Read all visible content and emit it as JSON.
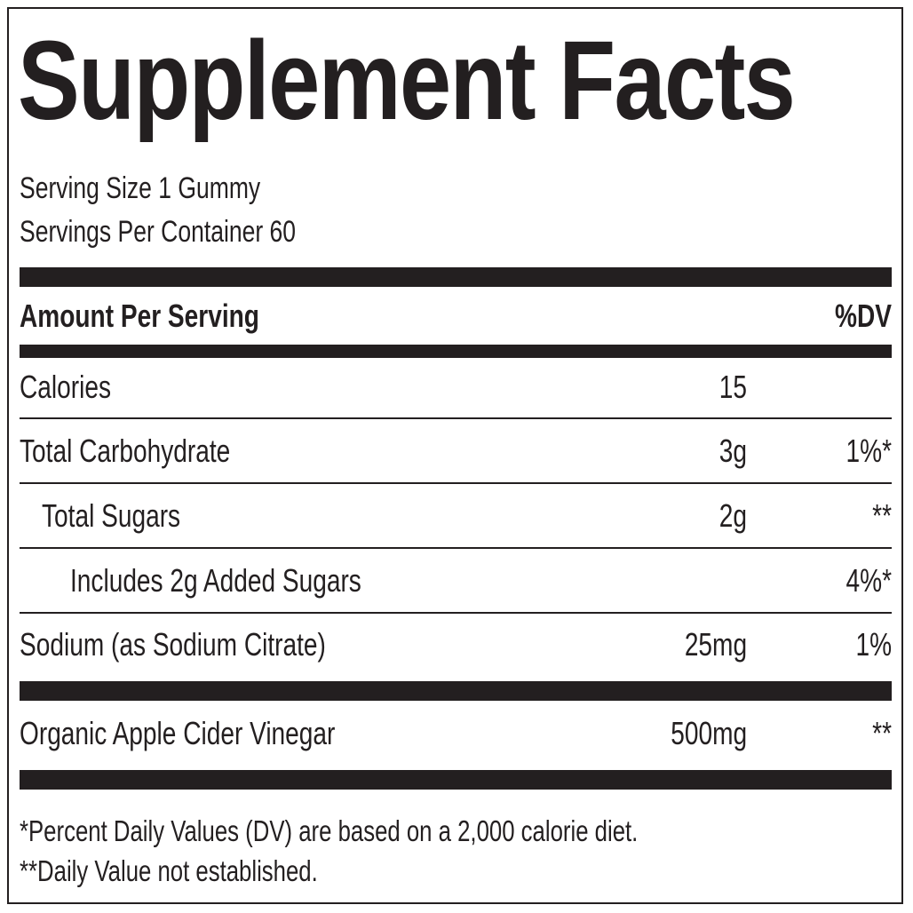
{
  "title": "Supplement Facts",
  "serving": {
    "size": "Serving Size 1 Gummy",
    "per_container": "Servings Per Container 60"
  },
  "header": {
    "amount_label": "Amount Per Serving",
    "dv_label": "%DV"
  },
  "rows": [
    {
      "label": "Calories",
      "amount": "15",
      "dv": ""
    },
    {
      "label": "Total Carbohydrate",
      "amount": "3g",
      "dv": "1%*"
    },
    {
      "label": "Total Sugars",
      "amount": "2g",
      "dv": "**"
    },
    {
      "label": "Includes 2g Added Sugars",
      "amount": "",
      "dv": "4%*"
    },
    {
      "label": "Sodium (as Sodium Citrate)",
      "amount": "25mg",
      "dv": "1%"
    },
    {
      "label": "Organic Apple Cider Vinegar",
      "amount": "500mg",
      "dv": "**"
    }
  ],
  "footnotes": [
    "*Percent Daily Values (DV) are based on a 2,000 calorie diet.",
    "**Daily Value not established."
  ],
  "colors": {
    "ink": "#231f20",
    "background": "#ffffff"
  }
}
